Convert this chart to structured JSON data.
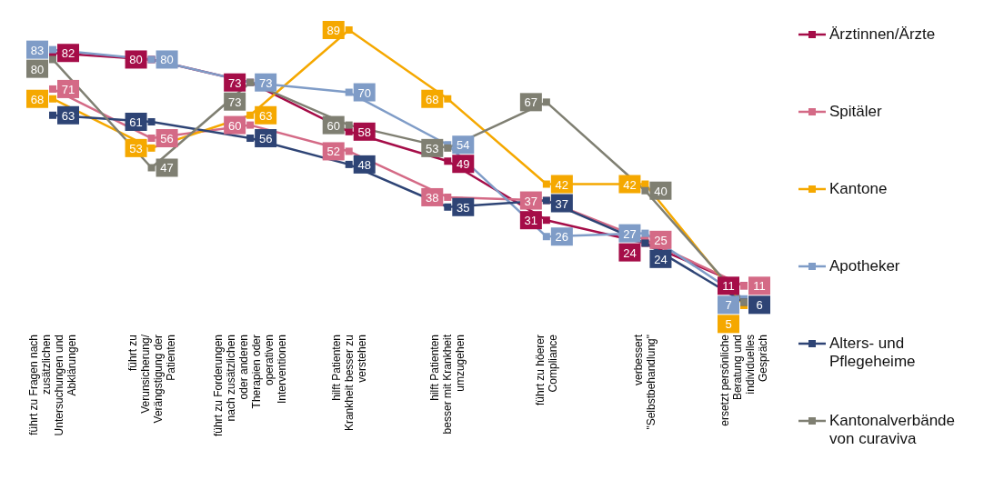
{
  "chart_data": {
    "type": "line",
    "categories": [
      "führt zu Fragen nach zusätzlichen Untersuchungen und Abklärungen",
      "führt zu Verunsicherung/ Verängstigung der Patienten",
      "führt zu Forderungen nach zusätzlichen oder anderen Therapien oder operativen Interventionen",
      "hilft Patienten Krankheit besser zu verstehen",
      "hilft Patienten besser mit Krankheit umzugehen",
      "führt zu höerer Compliance",
      "verbessert \"Selbstbehandlung\"",
      "ersetzt persönliche Beratung und individuelles Gespräch"
    ],
    "series": [
      {
        "name": "Ärztinnen/Ärzte",
        "color": "#a50d48",
        "values": [
          82,
          80,
          73,
          58,
          49,
          31,
          24,
          11
        ],
        "value_labels": [
          "82",
          "80",
          "73",
          "58",
          "49",
          "31",
          "24",
          "11"
        ]
      },
      {
        "name": "Spitäler",
        "color": "#d46a86",
        "values": [
          71,
          56,
          60,
          52,
          38,
          37,
          25,
          11
        ],
        "value_labels": [
          "71",
          "56",
          "60",
          "52",
          "38",
          "37",
          "25",
          "11"
        ]
      },
      {
        "name": "Kantone",
        "color": "#f5a800",
        "values": [
          68,
          53,
          63,
          89,
          68,
          42,
          42,
          5
        ],
        "value_labels": [
          "68",
          "53",
          "63",
          "89",
          "68",
          "42",
          "42",
          "5"
        ]
      },
      {
        "name": "Apotheker",
        "color": "#7f9cc7",
        "values": [
          83,
          80,
          73,
          70,
          54,
          26,
          27,
          7
        ],
        "value_labels": [
          "83",
          "80",
          "73",
          "70",
          "54",
          "26",
          "27",
          "7"
        ]
      },
      {
        "name": "Alters- und Pflegeheime",
        "color": "#2e4475",
        "values": [
          63,
          61,
          56,
          48,
          35,
          37,
          24,
          6
        ],
        "value_labels": [
          "63",
          "61",
          "56",
          "48",
          "35",
          "37",
          "24",
          "6"
        ]
      },
      {
        "name": "Kantonalverbände von curaviva",
        "color": "#7f7f72",
        "values": [
          80,
          47,
          73,
          60,
          53,
          67,
          40,
          6
        ],
        "value_labels": [
          "80",
          "47",
          "73",
          "60",
          "53",
          "67",
          "40",
          null
        ]
      }
    ],
    "legend": "right",
    "marker": "square",
    "line_style": "solid"
  }
}
